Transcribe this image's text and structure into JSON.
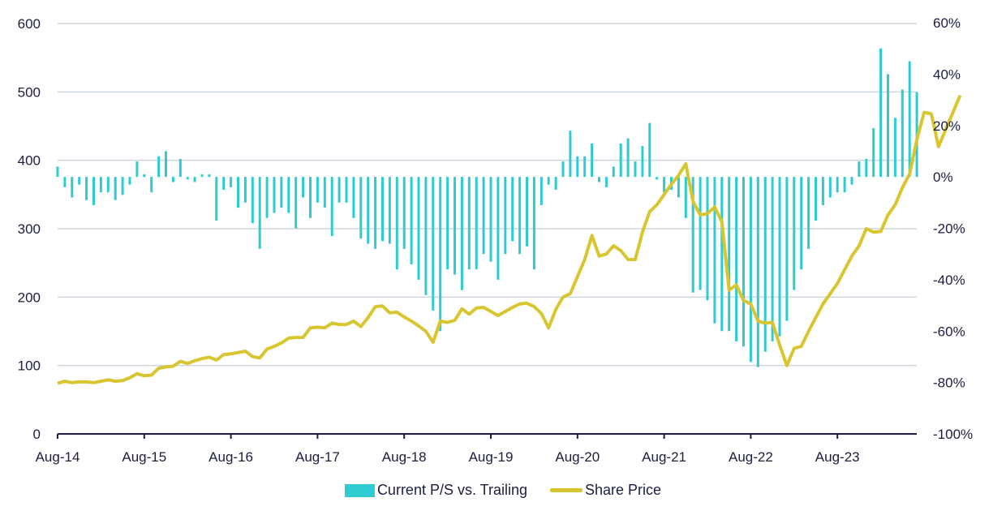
{
  "chart_data": {
    "type": "bar+line",
    "title": "",
    "xlabel": "",
    "ylabel_left": "",
    "ylabel_right": "",
    "x_start": "Aug-14",
    "x_frequency": "monthly",
    "x_tick_labels": [
      "Aug-14",
      "Aug-15",
      "Aug-16",
      "Aug-17",
      "Aug-18",
      "Aug-19",
      "Aug-20",
      "Aug-21",
      "Aug-22",
      "Aug-23"
    ],
    "left_axis": {
      "min": 0,
      "max": 600,
      "ticks": [
        "0",
        "100",
        "200",
        "300",
        "400",
        "500",
        "600"
      ]
    },
    "right_axis": {
      "min": -100,
      "max": 60,
      "ticks": [
        "-100%",
        "-80%",
        "-60%",
        "-40%",
        "-20%",
        "0%",
        "20%",
        "40%",
        "60%"
      ]
    },
    "grid": true,
    "legend_position": "bottom",
    "series": [
      {
        "name": "Current P/S vs. Trailing",
        "type": "bar",
        "axis": "right",
        "color": "#2ecbd3",
        "values": [
          4,
          -4,
          -8,
          -3,
          -9,
          -11,
          -6,
          -6,
          -9,
          -7,
          -3,
          6,
          1,
          -6,
          8,
          10,
          -2,
          7,
          -1,
          -2,
          1,
          1,
          -17,
          -5,
          -4,
          -12,
          -10,
          -18,
          -28,
          -16,
          -14,
          -12,
          -14,
          -20,
          -8,
          -16,
          -10,
          -12,
          -23,
          -10,
          -10,
          -16,
          -24,
          -26,
          -28,
          -25,
          -26,
          -36,
          -28,
          -34,
          -40,
          -46,
          -52,
          -60,
          -36,
          -38,
          -44,
          -36,
          -36,
          -30,
          -33,
          -40,
          -30,
          -25,
          -30,
          -27,
          -36,
          -11,
          -3,
          -5,
          6,
          18,
          8,
          8,
          13,
          -2,
          -4,
          4,
          13,
          15,
          6,
          12,
          21,
          -1,
          -6,
          -5,
          -8,
          -16,
          -45,
          -44,
          -48,
          -57,
          -60,
          -60,
          -64,
          -66,
          -72,
          -74,
          -68,
          -64,
          -62,
          -56,
          -44,
          -36,
          -28,
          -17,
          -11,
          -8,
          -6,
          -6,
          -3,
          6,
          7,
          19,
          50,
          40,
          23,
          34,
          45,
          33
        ]
      },
      {
        "name": "Share Price",
        "type": "line",
        "axis": "left",
        "color": "#d8c630",
        "values": [
          74,
          77,
          75,
          76,
          76,
          75,
          77,
          79,
          77,
          78,
          82,
          88,
          85,
          86,
          96,
          98,
          99,
          106,
          103,
          107,
          110,
          112,
          108,
          116,
          117,
          119,
          121,
          113,
          111,
          124,
          128,
          133,
          140,
          141,
          141,
          155,
          156,
          155,
          162,
          160,
          160,
          165,
          157,
          170,
          186,
          187,
          177,
          178,
          171,
          165,
          158,
          150,
          134,
          165,
          163,
          166,
          183,
          175,
          184,
          185,
          179,
          173,
          179,
          185,
          190,
          191,
          186,
          176,
          155,
          182,
          200,
          205,
          230,
          255,
          290,
          260,
          263,
          275,
          268,
          255,
          255,
          295,
          325,
          335,
          350,
          365,
          378,
          395,
          340,
          320,
          322,
          332,
          310,
          210,
          218,
          195,
          190,
          165,
          162,
          163,
          130,
          100,
          125,
          128,
          150,
          170,
          190,
          205,
          220,
          240,
          260,
          275,
          300,
          295,
          296,
          320,
          335,
          360,
          380,
          430,
          470,
          468,
          420,
          445,
          470,
          495
        ]
      }
    ]
  },
  "legend": {
    "bar_label": "Current P/S vs. Trailing",
    "line_label": "Share Price"
  }
}
